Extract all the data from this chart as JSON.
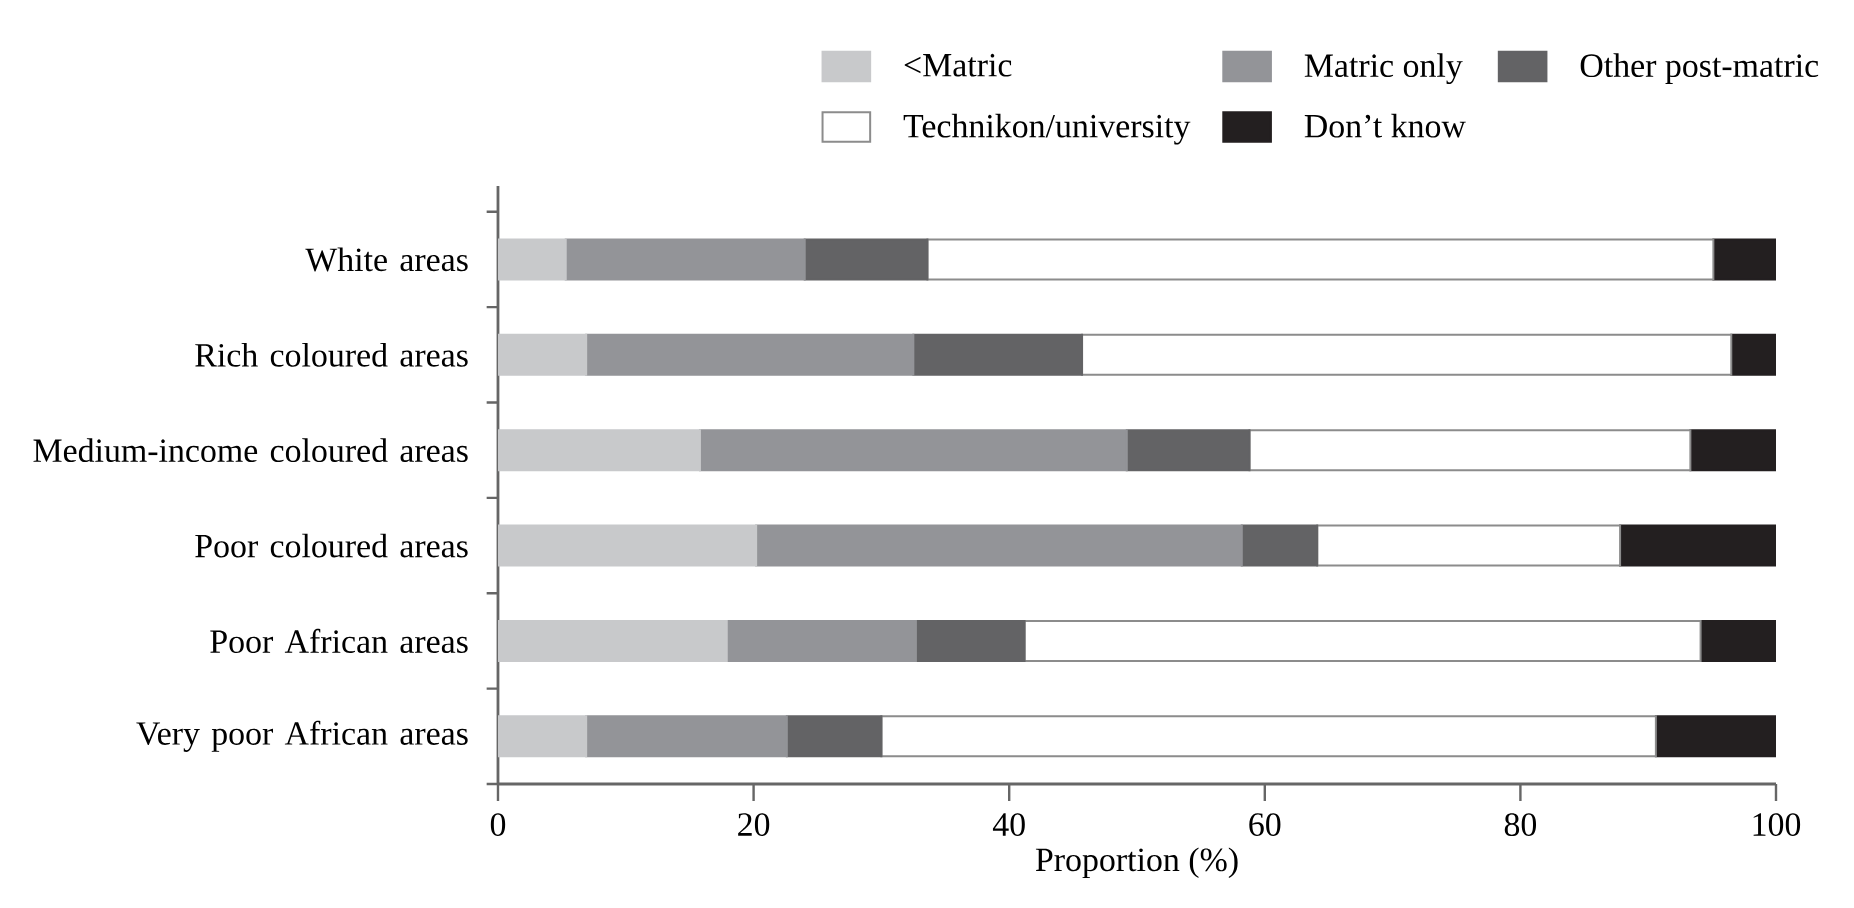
{
  "chart_data": {
    "type": "bar",
    "orientation": "horizontal",
    "stacked": true,
    "xlabel": "Proportion (%)",
    "categories": [
      "White areas",
      "Rich coloured areas",
      "Medium-income coloured areas",
      "Poor coloured areas",
      "Poor African areas",
      "Very poor African areas"
    ],
    "series": [
      {
        "name": "<Matric",
        "color": "#c8c9cb",
        "values": [
          5.3,
          6.9,
          15.8,
          20.2,
          17.9,
          6.9
        ]
      },
      {
        "name": "Matric only",
        "color": "#939498",
        "values": [
          18.7,
          25.6,
          33.4,
          38.0,
          14.8,
          15.7
        ]
      },
      {
        "name": "Other post-matric",
        "color": "#636365",
        "values": [
          9.6,
          13.2,
          9.6,
          5.9,
          8.5,
          7.4
        ]
      },
      {
        "name": "Technikon/university",
        "color": "#ffffff",
        "values": [
          61.5,
          50.8,
          34.5,
          23.7,
          52.9,
          60.6
        ]
      },
      {
        "name": "Don’t know",
        "color": "#231f20",
        "values": [
          4.9,
          3.5,
          6.7,
          12.2,
          5.9,
          9.4
        ]
      }
    ],
    "xlim": [
      0,
      100
    ],
    "xticks": [
      0,
      20,
      40,
      60,
      80,
      100
    ],
    "grid": false,
    "legend": "top right"
  }
}
